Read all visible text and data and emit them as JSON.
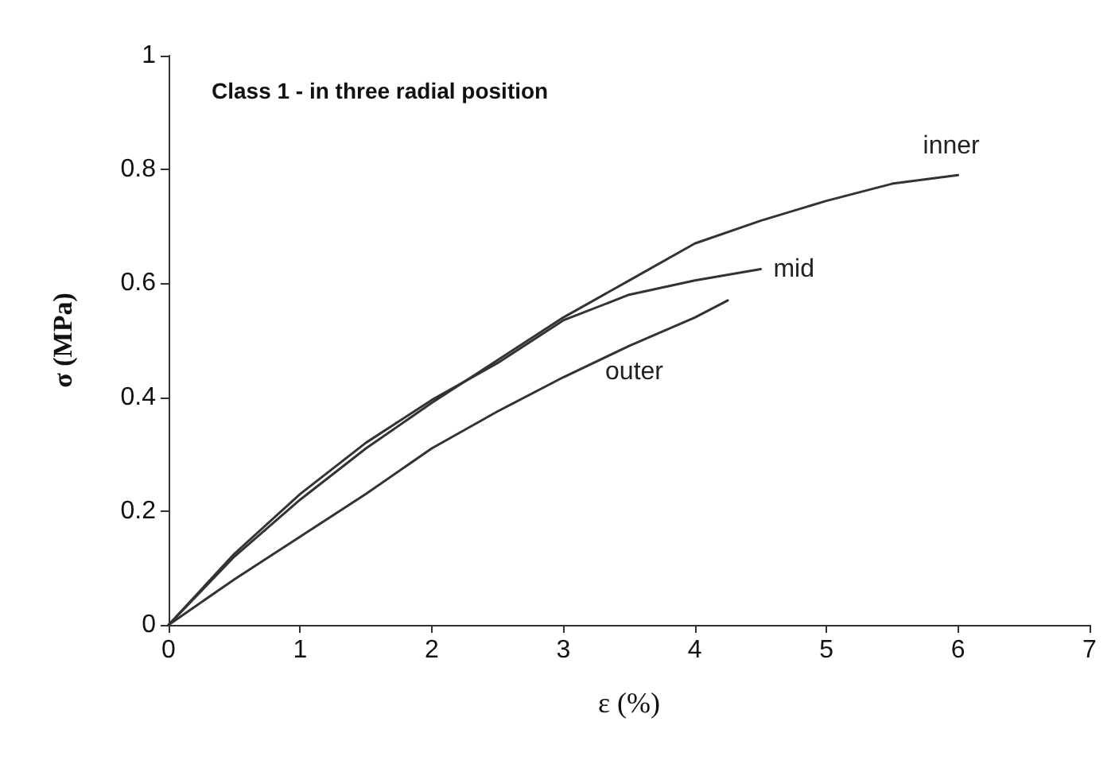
{
  "chart_data": {
    "type": "line",
    "title": "Class 1 - in three radial position",
    "xlabel": "ε (%)",
    "ylabel": "σ (MPa)",
    "xlim": [
      0,
      7
    ],
    "xticks": [
      0,
      1,
      2,
      3,
      4,
      5,
      6,
      7
    ],
    "ylim": [
      0,
      1
    ],
    "yticks": [
      0,
      0.2,
      0.4,
      0.6,
      0.8,
      1
    ],
    "grid": false,
    "legend": false,
    "marker": "none",
    "line_style": "solid",
    "series": [
      {
        "name": "inner",
        "color": "#333333",
        "x": [
          0,
          0.5,
          1,
          1.5,
          2,
          2.5,
          3,
          3.5,
          4,
          4.5,
          5,
          5.5,
          6
        ],
        "values": [
          0,
          0.12,
          0.22,
          0.31,
          0.39,
          0.465,
          0.54,
          0.605,
          0.67,
          0.71,
          0.745,
          0.775,
          0.79
        ]
      },
      {
        "name": "mid",
        "color": "#333333",
        "x": [
          0,
          0.5,
          1,
          1.5,
          2,
          2.5,
          3,
          3.5,
          4,
          4.5
        ],
        "values": [
          0,
          0.125,
          0.23,
          0.32,
          0.395,
          0.46,
          0.535,
          0.58,
          0.605,
          0.625
        ]
      },
      {
        "name": "outer",
        "color": "#333333",
        "x": [
          0,
          0.5,
          1,
          1.5,
          2,
          2.5,
          3,
          3.5,
          4,
          4.25
        ],
        "values": [
          0,
          0.08,
          0.155,
          0.23,
          0.31,
          0.375,
          0.435,
          0.49,
          0.54,
          0.57
        ]
      }
    ]
  }
}
